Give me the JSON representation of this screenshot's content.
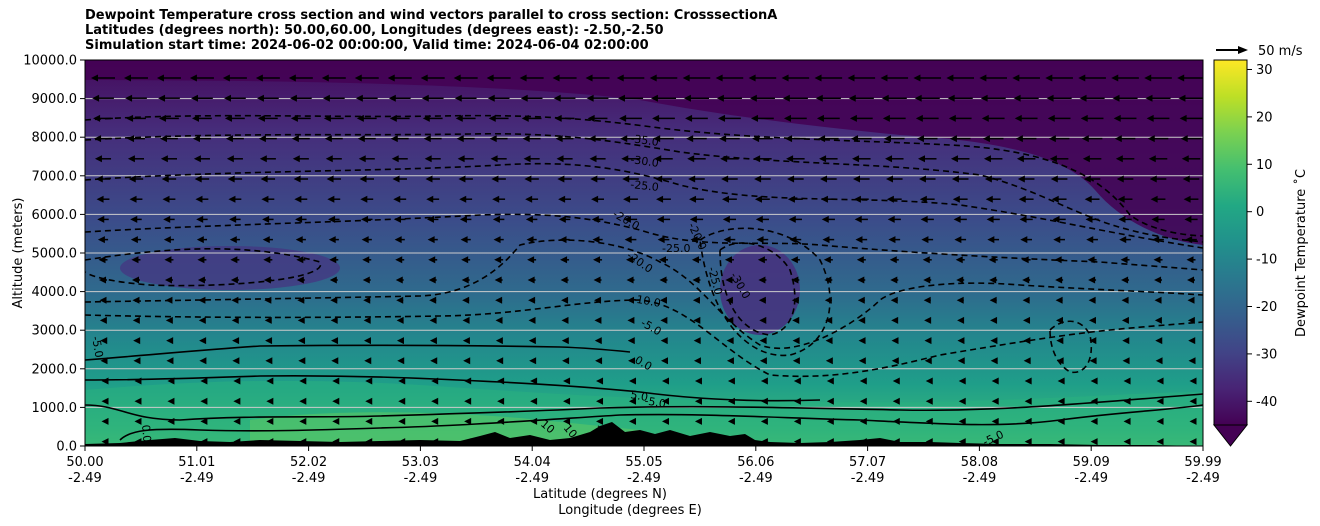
{
  "chart_data": {
    "type": "contourf",
    "title_lines": [
      "Dewpoint Temperature cross section and wind vectors parallel to cross section: CrosssectionA",
      "Latitudes (degrees north): 50.00,60.00, Longitudes (degrees east): -2.50,-2.50",
      "Simulation start time: 2024-06-02 00:00:00, Valid time: 2024-06-04 02:00:00"
    ],
    "ylabel": "Altitude (meters)",
    "xlabel_line1": "Latitude (degrees N)",
    "xlabel_line2": "Longitude (degrees E)",
    "ylim": [
      0,
      10000
    ],
    "yticks": [
      "0.0",
      "1000.0",
      "2000.0",
      "3000.0",
      "4000.0",
      "5000.0",
      "6000.0",
      "7000.0",
      "8000.0",
      "9000.0",
      "10000.0"
    ],
    "xlim": [
      50.0,
      59.99
    ],
    "xticks_lat": [
      "50.00",
      "51.01",
      "52.02",
      "53.03",
      "54.04",
      "55.05",
      "56.06",
      "57.07",
      "58.08",
      "59.09",
      "59.99"
    ],
    "xticks_lon": [
      "-2.49",
      "-2.49",
      "-2.49",
      "-2.49",
      "-2.49",
      "-2.49",
      "-2.49",
      "-2.49",
      "-2.49",
      "-2.49",
      "-2.49"
    ],
    "grid": "horizontal",
    "colorbar": {
      "label": "Dewpoint Temperature ˚C",
      "ticks": [
        "-40",
        "-30",
        "-20",
        "-10",
        "0",
        "10",
        "20",
        "30"
      ],
      "range": [
        -45,
        32
      ],
      "extend": "min",
      "colormap": "viridis"
    },
    "quiver_key": {
      "label": "50 m/s"
    },
    "contour_labels": [
      "-35.0",
      "-30.0",
      "-25.0",
      "-20.0",
      "-20.0",
      "-25.0",
      "-20.0",
      "-25.0",
      "-30.0",
      "-10.0",
      "-5.0",
      "0.0",
      "5.0",
      "-5.0",
      "-5.0",
      "0.0",
      "10",
      "10",
      "10",
      "-5.0"
    ]
  }
}
